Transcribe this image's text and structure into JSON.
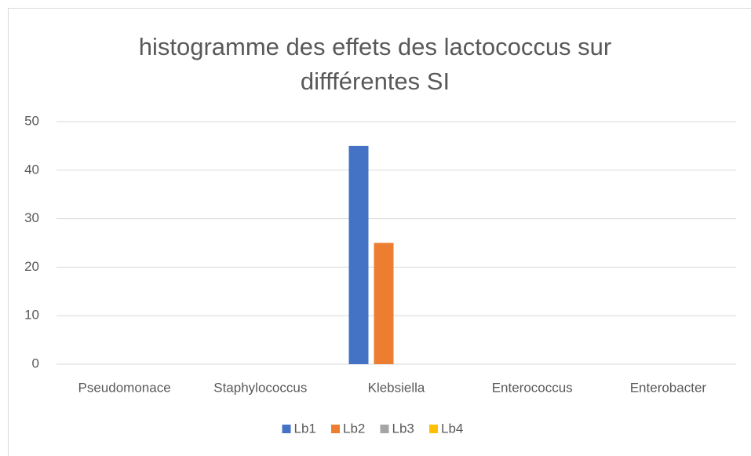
{
  "chart_data": {
    "type": "bar",
    "title": "histogramme des effets des lactococcus sur diffférentes SI",
    "categories": [
      "Pseudomonace",
      "Staphylococcus",
      "Klebsiella",
      "Enterococcus",
      "Enterobacter"
    ],
    "series": [
      {
        "name": "Lb1",
        "color": "#4472c4",
        "values": [
          0,
          0,
          45,
          0,
          0
        ]
      },
      {
        "name": "Lb2",
        "color": "#ed7d31",
        "values": [
          0,
          0,
          25,
          0,
          0
        ]
      },
      {
        "name": "Lb3",
        "color": "#a5a5a5",
        "values": [
          0,
          0,
          0,
          0,
          0
        ]
      },
      {
        "name": "Lb4",
        "color": "#ffc000",
        "values": [
          0,
          0,
          0,
          0,
          0
        ]
      }
    ],
    "ylim": [
      0,
      50
    ],
    "yticks": [
      0,
      10,
      20,
      30,
      40,
      50
    ],
    "grid": true,
    "legend": "bottom"
  }
}
